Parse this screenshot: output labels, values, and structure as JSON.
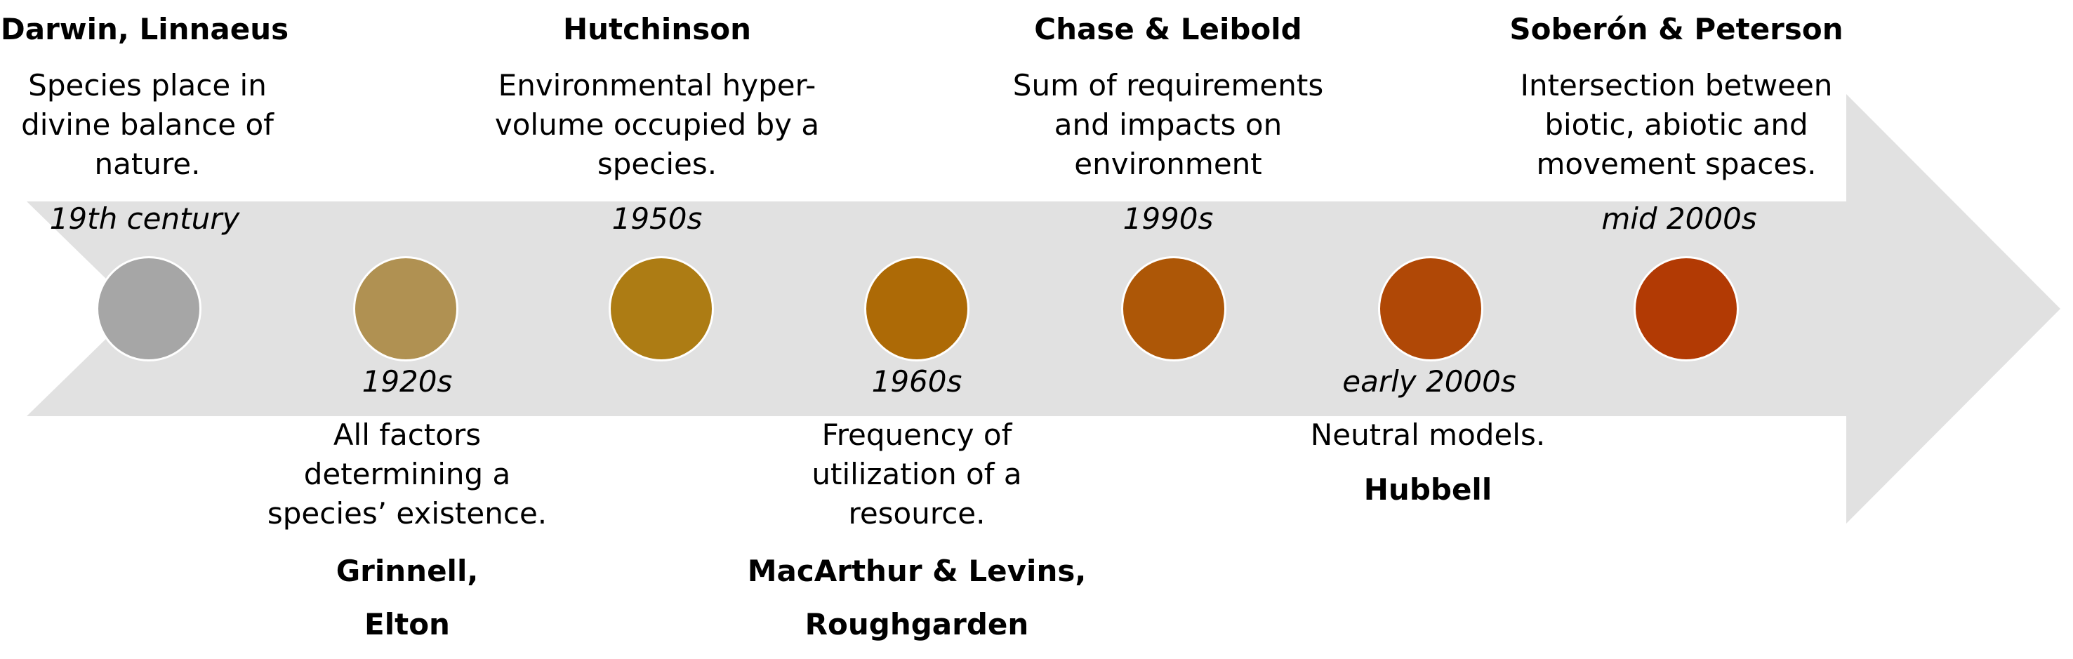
{
  "timeline": {
    "arrow_color": "#e1e1e1",
    "events": [
      {
        "date": "19th century",
        "authors": [
          "Darwin, Linnaeus"
        ],
        "description": "Species place in\ndivine  balance of\nnature.",
        "position": "top",
        "color": "#a6a6a6"
      },
      {
        "date": "1920s",
        "authors": [
          "Grinnell,",
          "Elton"
        ],
        "description": "All factors\ndetermining a\nspecies’ existence.",
        "position": "bottom",
        "color": "#b09152"
      },
      {
        "date": "1950s",
        "authors": [
          "Hutchinson"
        ],
        "description": "Environmental hyper-\nvolume occupied by a\nspecies.",
        "position": "top",
        "color": "#ad7c14"
      },
      {
        "date": "1960s",
        "authors": [
          "MacArthur & Levins,",
          "Roughgarden"
        ],
        "description": "Frequency of\nutilization of a\nresource.",
        "position": "bottom",
        "color": "#ad6a06"
      },
      {
        "date": "1990s",
        "authors": [
          "Chase & Leibold"
        ],
        "description": "Sum of requirements\nand impacts on\nenvironment",
        "position": "top",
        "color": "#ad5707"
      },
      {
        "date": "early 2000s",
        "authors": [
          "Hubbell"
        ],
        "description": "Neutral models.",
        "position": "bottom",
        "color": "#b04806"
      },
      {
        "date": "mid 2000s",
        "authors": [
          "Soberón & Peterson"
        ],
        "description": "Intersection between\nbiotic, abiotic and\nmovement spaces.",
        "position": "top",
        "color": "#b23a04"
      }
    ]
  }
}
